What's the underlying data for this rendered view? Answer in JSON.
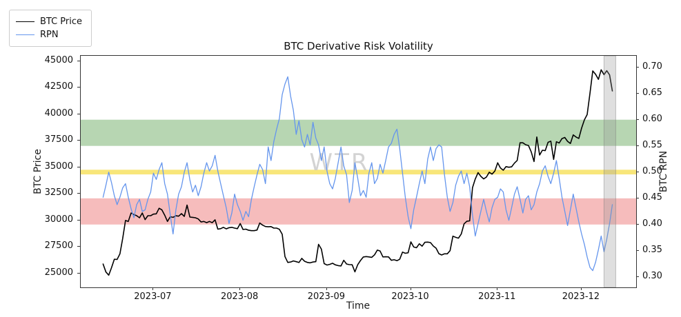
{
  "title": "BTC Derivative Risk Volatility",
  "watermark": "WTR",
  "legend": {
    "position": "upper-left-outside",
    "items": [
      {
        "label": "BTC Price",
        "color": "#000000",
        "line_width": 1.8
      },
      {
        "label": "RPN",
        "color": "#6495ed",
        "line_width": 1.5
      }
    ]
  },
  "chart_data": {
    "type": "line",
    "title": "BTC Derivative Risk Volatility",
    "xlabel": "Time",
    "ylabel_left": "BTC Price",
    "ylabel_right": "BTC RPN",
    "grid": false,
    "background": "#ffffff",
    "x_unit": "day index, 0 = 2023-06-13, 1 point per day",
    "xlim": [
      -8,
      190.5
    ],
    "ylim_left": [
      23700,
      45500
    ],
    "ylim_right": [
      0.28,
      0.722
    ],
    "x_ticks": [
      {
        "t": 18,
        "label": "2023-07"
      },
      {
        "t": 49,
        "label": "2023-08"
      },
      {
        "t": 80,
        "label": "2023-09"
      },
      {
        "t": 110,
        "label": "2023-10"
      },
      {
        "t": 141,
        "label": "2023-11"
      },
      {
        "t": 171,
        "label": "2023-12"
      }
    ],
    "y_ticks_left": [
      {
        "v": 25000,
        "label": "25000"
      },
      {
        "v": 27500,
        "label": "27500"
      },
      {
        "v": 30000,
        "label": "30000"
      },
      {
        "v": 32500,
        "label": "32500"
      },
      {
        "v": 35000,
        "label": "35000"
      },
      {
        "v": 37500,
        "label": "37500"
      },
      {
        "v": 40000,
        "label": "40000"
      },
      {
        "v": 42500,
        "label": "42500"
      },
      {
        "v": 45000,
        "label": "45000"
      }
    ],
    "y_ticks_right": [
      {
        "v": 0.3,
        "label": "0.30"
      },
      {
        "v": 0.35,
        "label": "0.35"
      },
      {
        "v": 0.4,
        "label": "0.40"
      },
      {
        "v": 0.45,
        "label": "0.45"
      },
      {
        "v": 0.5,
        "label": "0.50"
      },
      {
        "v": 0.55,
        "label": "0.55"
      },
      {
        "v": 0.6,
        "label": "0.60"
      },
      {
        "v": 0.65,
        "label": "0.65"
      },
      {
        "v": 0.7,
        "label": "0.70"
      }
    ],
    "bands": [
      {
        "kind": "hspan",
        "name": "upper-risk-zone",
        "axis": "right",
        "from": 0.55,
        "to": 0.6,
        "color": "#b7d6b2"
      },
      {
        "kind": "hspan",
        "name": "mid-risk-line",
        "axis": "right",
        "from": 0.4955,
        "to": 0.5045,
        "color": "#f8e67a"
      },
      {
        "kind": "hspan",
        "name": "lower-risk-zone",
        "axis": "right",
        "from": 0.4,
        "to": 0.45,
        "color": "#f6bcbc"
      },
      {
        "kind": "vspan",
        "name": "recent-window",
        "from_t": 179,
        "to_t": 183.2,
        "color": "rgba(150,150,150,0.30)",
        "border": "rgba(120,120,120,0.45)"
      }
    ],
    "series": [
      {
        "name": "BTC Price",
        "axis": "left",
        "color": "#000000",
        "stroke_width": 1.6,
        "values": [
          25900,
          25150,
          24850,
          25550,
          26350,
          26330,
          26850,
          28300,
          30000,
          29900,
          30700,
          30550,
          30450,
          30250,
          30700,
          30080,
          30450,
          30450,
          30600,
          30620,
          31150,
          31000,
          30500,
          29910,
          30350,
          30290,
          30440,
          30400,
          30640,
          30380,
          31450,
          30320,
          30290,
          30250,
          30140,
          29860,
          29910,
          29790,
          29910,
          29790,
          30060,
          29180,
          29230,
          29350,
          29210,
          29320,
          29350,
          29280,
          29230,
          29710,
          29150,
          29180,
          29080,
          29040,
          29040,
          29100,
          29760,
          29560,
          29430,
          29400,
          29420,
          29280,
          29280,
          29170,
          28700,
          26600,
          26050,
          26090,
          26190,
          26120,
          26040,
          26430,
          26160,
          26050,
          26010,
          26090,
          26120,
          27750,
          27300,
          25940,
          25800,
          25870,
          25970,
          25820,
          25750,
          25720,
          26250,
          25900,
          25840,
          25830,
          25160,
          25840,
          26230,
          26560,
          26600,
          26570,
          26530,
          26760,
          27210,
          27120,
          26570,
          26580,
          26570,
          26250,
          26300,
          26210,
          26350,
          27020,
          26910,
          26960,
          27980,
          27500,
          27430,
          27800,
          27580,
          27940,
          27960,
          27920,
          27590,
          27390,
          26870,
          26750,
          26860,
          26860,
          27160,
          28520,
          28410,
          28330,
          28720,
          29680,
          29920,
          29960,
          33080,
          33900,
          34500,
          34150,
          33910,
          34090,
          34540,
          34360,
          34650,
          35430,
          34940,
          34730,
          35070,
          35010,
          35050,
          35400,
          35650,
          37310,
          37310,
          37130,
          37060,
          36460,
          35550,
          37860,
          36160,
          36610,
          36570,
          37360,
          37470,
          35750,
          37410,
          37290,
          37710,
          37810,
          37450,
          37250,
          38060,
          37860,
          37720,
          38690,
          39470,
          39970,
          41990,
          44080,
          43760,
          43290,
          44180,
          43720,
          44100,
          43700,
          42190
        ]
      },
      {
        "name": "RPN",
        "axis": "right",
        "color": "#6495ed",
        "stroke_width": 1.3,
        "values": [
          0.452,
          0.475,
          0.5,
          0.48,
          0.455,
          0.438,
          0.452,
          0.47,
          0.478,
          0.452,
          0.43,
          0.413,
          0.438,
          0.448,
          0.425,
          0.428,
          0.448,
          0.462,
          0.498,
          0.486,
          0.505,
          0.518,
          0.478,
          0.458,
          0.418,
          0.382,
          0.428,
          0.458,
          0.472,
          0.5,
          0.518,
          0.485,
          0.462,
          0.475,
          0.455,
          0.472,
          0.498,
          0.518,
          0.502,
          0.512,
          0.532,
          0.502,
          0.478,
          0.455,
          0.432,
          0.402,
          0.422,
          0.458,
          0.438,
          0.425,
          0.408,
          0.425,
          0.415,
          0.448,
          0.472,
          0.495,
          0.515,
          0.505,
          0.478,
          0.548,
          0.522,
          0.558,
          0.582,
          0.602,
          0.648,
          0.668,
          0.682,
          0.645,
          0.618,
          0.572,
          0.598,
          0.562,
          0.548,
          0.572,
          0.552,
          0.595,
          0.565,
          0.552,
          0.522,
          0.548,
          0.502,
          0.478,
          0.468,
          0.488,
          0.518,
          0.548,
          0.512,
          0.495,
          0.442,
          0.465,
          0.518,
          0.488,
          0.455,
          0.465,
          0.452,
          0.498,
          0.518,
          0.478,
          0.488,
          0.515,
          0.498,
          0.522,
          0.548,
          0.555,
          0.572,
          0.582,
          0.545,
          0.498,
          0.452,
          0.415,
          0.392,
          0.428,
          0.452,
          0.478,
          0.502,
          0.478,
          0.525,
          0.548,
          0.522,
          0.545,
          0.552,
          0.548,
          0.495,
          0.452,
          0.425,
          0.442,
          0.475,
          0.492,
          0.502,
          0.478,
          0.498,
          0.472,
          0.418,
          0.378,
          0.402,
          0.425,
          0.448,
          0.425,
          0.405,
          0.432,
          0.448,
          0.452,
          0.468,
          0.462,
          0.428,
          0.408,
          0.432,
          0.458,
          0.472,
          0.448,
          0.422,
          0.448,
          0.455,
          0.428,
          0.438,
          0.462,
          0.478,
          0.502,
          0.512,
          0.492,
          0.478,
          0.498,
          0.522,
          0.488,
          0.452,
          0.425,
          0.398,
          0.428,
          0.458,
          0.432,
          0.405,
          0.382,
          0.362,
          0.338,
          0.318,
          0.312,
          0.328,
          0.352,
          0.378,
          0.348,
          0.372,
          0.402,
          0.438
        ]
      }
    ]
  }
}
